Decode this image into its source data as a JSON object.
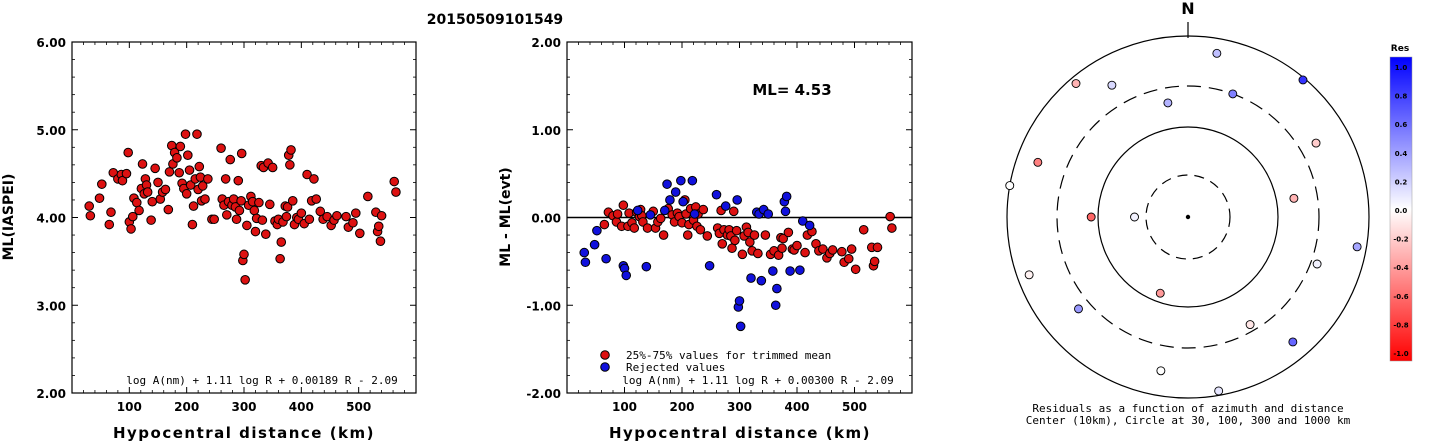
{
  "page_title": "20150509101549",
  "chart_data": [
    {
      "type": "scatter",
      "ylabel": "ML(IASPEI)",
      "xlabel": "Hypocentral distance (km)",
      "xlim": [
        0,
        600
      ],
      "ylim": [
        2.0,
        6.0
      ],
      "x_ticks": [
        "100",
        "200",
        "300",
        "400",
        "500"
      ],
      "y_ticks": [
        "2.00",
        "3.00",
        "4.00",
        "5.00",
        "6.00"
      ],
      "formula": "log A(nm) + 1.11 log R + 0.00189 R - 2.09",
      "color": "#dd1111",
      "points": [
        [
          30,
          4.13
        ],
        [
          32,
          4.02
        ],
        [
          48,
          4.22
        ],
        [
          52,
          4.38
        ],
        [
          65,
          3.92
        ],
        [
          68,
          4.06
        ],
        [
          72,
          4.51
        ],
        [
          80,
          4.44
        ],
        [
          86,
          4.49
        ],
        [
          88,
          4.42
        ],
        [
          95,
          4.5
        ],
        [
          98,
          4.74
        ],
        [
          100,
          3.95
        ],
        [
          103,
          3.87
        ],
        [
          106,
          4.01
        ],
        [
          108,
          4.22
        ],
        [
          113,
          4.17
        ],
        [
          117,
          4.08
        ],
        [
          121,
          4.33
        ],
        [
          123,
          4.61
        ],
        [
          126,
          4.27
        ],
        [
          128,
          4.44
        ],
        [
          130,
          4.37
        ],
        [
          132,
          4.29
        ],
        [
          138,
          3.97
        ],
        [
          140,
          4.18
        ],
        [
          145,
          4.56
        ],
        [
          150,
          4.4
        ],
        [
          154,
          4.21
        ],
        [
          158,
          4.29
        ],
        [
          163,
          4.32
        ],
        [
          168,
          4.09
        ],
        [
          170,
          4.52
        ],
        [
          174,
          4.82
        ],
        [
          176,
          4.61
        ],
        [
          179,
          4.74
        ],
        [
          183,
          4.68
        ],
        [
          187,
          4.51
        ],
        [
          189,
          4.81
        ],
        [
          192,
          4.39
        ],
        [
          195,
          4.33
        ],
        [
          198,
          4.95
        ],
        [
          200,
          4.27
        ],
        [
          202,
          4.71
        ],
        [
          205,
          4.54
        ],
        [
          207,
          4.37
        ],
        [
          210,
          3.92
        ],
        [
          212,
          4.13
        ],
        [
          215,
          4.44
        ],
        [
          218,
          4.95
        ],
        [
          220,
          4.32
        ],
        [
          222,
          4.58
        ],
        [
          224,
          4.46
        ],
        [
          226,
          4.19
        ],
        [
          228,
          4.36
        ],
        [
          232,
          4.21
        ],
        [
          237,
          4.44
        ],
        [
          244,
          3.98
        ],
        [
          248,
          3.98
        ],
        [
          260,
          4.79
        ],
        [
          262,
          4.21
        ],
        [
          265,
          4.14
        ],
        [
          268,
          4.44
        ],
        [
          270,
          4.03
        ],
        [
          273,
          4.18
        ],
        [
          276,
          4.66
        ],
        [
          279,
          4.14
        ],
        [
          282,
          4.21
        ],
        [
          285,
          4.12
        ],
        [
          287,
          3.98
        ],
        [
          290,
          4.42
        ],
        [
          292,
          4.08
        ],
        [
          295,
          4.19
        ],
        [
          296,
          4.73
        ],
        [
          298,
          3.51
        ],
        [
          300,
          3.58
        ],
        [
          302,
          3.29
        ],
        [
          305,
          3.91
        ],
        [
          308,
          4.14
        ],
        [
          312,
          4.24
        ],
        [
          315,
          4.18
        ],
        [
          318,
          4.08
        ],
        [
          320,
          3.84
        ],
        [
          322,
          3.99
        ],
        [
          326,
          4.17
        ],
        [
          330,
          4.59
        ],
        [
          332,
          3.97
        ],
        [
          334,
          4.57
        ],
        [
          338,
          3.81
        ],
        [
          342,
          4.62
        ],
        [
          345,
          4.15
        ],
        [
          350,
          4.57
        ],
        [
          354,
          3.96
        ],
        [
          358,
          3.92
        ],
        [
          360,
          3.98
        ],
        [
          363,
          3.53
        ],
        [
          365,
          3.72
        ],
        [
          368,
          3.95
        ],
        [
          372,
          4.13
        ],
        [
          374,
          4.01
        ],
        [
          376,
          4.12
        ],
        [
          378,
          4.71
        ],
        [
          380,
          4.6
        ],
        [
          382,
          4.77
        ],
        [
          385,
          4.19
        ],
        [
          388,
          3.92
        ],
        [
          392,
          4.0
        ],
        [
          395,
          3.98
        ],
        [
          400,
          4.05
        ],
        [
          405,
          3.93
        ],
        [
          410,
          4.49
        ],
        [
          414,
          3.98
        ],
        [
          418,
          4.19
        ],
        [
          422,
          4.44
        ],
        [
          426,
          4.21
        ],
        [
          433,
          4.07
        ],
        [
          438,
          3.98
        ],
        [
          445,
          4.01
        ],
        [
          452,
          3.91
        ],
        [
          457,
          3.97
        ],
        [
          462,
          4.02
        ],
        [
          478,
          4.01
        ],
        [
          482,
          3.89
        ],
        [
          490,
          3.94
        ],
        [
          495,
          4.05
        ],
        [
          502,
          3.82
        ],
        [
          516,
          4.24
        ],
        [
          530,
          4.06
        ],
        [
          533,
          3.84
        ],
        [
          535,
          3.9
        ],
        [
          538,
          3.73
        ],
        [
          540,
          4.02
        ],
        [
          562,
          4.41
        ],
        [
          565,
          4.29
        ]
      ]
    },
    {
      "type": "scatter",
      "ylabel": "ML - ML(evt)",
      "xlabel": "Hypocentral distance (km)",
      "xlim": [
        0,
        600
      ],
      "ylim": [
        -2.0,
        2.0
      ],
      "x_ticks": [
        "100",
        "200",
        "300",
        "400",
        "500"
      ],
      "y_ticks": [
        "-2.00",
        "-1.00",
        "0.00",
        "1.00",
        "2.00"
      ],
      "annotation": "ML= 4.53",
      "formula": "log A(nm) + 1.11 log R + 0.00300 R - 2.09",
      "series": [
        {
          "name": "25%-75% values for trimmed mean",
          "color": "#dd1111",
          "points": [
            [
              65,
              -0.08
            ],
            [
              72,
              0.06
            ],
            [
              80,
              0.02
            ],
            [
              86,
              -0.05
            ],
            [
              88,
              0.04
            ],
            [
              95,
              -0.1
            ],
            [
              98,
              0.14
            ],
            [
              106,
              -0.1
            ],
            [
              108,
              0.05
            ],
            [
              113,
              -0.06
            ],
            [
              117,
              -0.12
            ],
            [
              121,
              0.06
            ],
            [
              126,
              0.01
            ],
            [
              128,
              0.09
            ],
            [
              130,
              0.02
            ],
            [
              132,
              -0.05
            ],
            [
              140,
              -0.12
            ],
            [
              150,
              0.07
            ],
            [
              154,
              -0.12
            ],
            [
              158,
              -0.05
            ],
            [
              163,
              -0.01
            ],
            [
              168,
              -0.2
            ],
            [
              176,
              0.1
            ],
            [
              183,
              0.03
            ],
            [
              187,
              -0.05
            ],
            [
              192,
              0.05
            ],
            [
              195,
              0.01
            ],
            [
              200,
              -0.06
            ],
            [
              205,
              0.2
            ],
            [
              207,
              0.04
            ],
            [
              210,
              -0.2
            ],
            [
              212,
              -0.08
            ],
            [
              215,
              0.1
            ],
            [
              220,
              -0.03
            ],
            [
              224,
              0.12
            ],
            [
              226,
              -0.1
            ],
            [
              228,
              0.04
            ],
            [
              232,
              -0.14
            ],
            [
              237,
              0.09
            ],
            [
              244,
              -0.21
            ],
            [
              262,
              -0.12
            ],
            [
              265,
              -0.18
            ],
            [
              268,
              0.08
            ],
            [
              270,
              -0.3
            ],
            [
              273,
              -0.14
            ],
            [
              279,
              -0.2
            ],
            [
              282,
              -0.14
            ],
            [
              285,
              -0.21
            ],
            [
              287,
              -0.35
            ],
            [
              290,
              0.07
            ],
            [
              292,
              -0.26
            ],
            [
              295,
              -0.15
            ],
            [
              305,
              -0.42
            ],
            [
              308,
              -0.21
            ],
            [
              312,
              -0.11
            ],
            [
              315,
              -0.17
            ],
            [
              318,
              -0.28
            ],
            [
              322,
              -0.38
            ],
            [
              326,
              -0.2
            ],
            [
              332,
              -0.41
            ],
            [
              345,
              -0.2
            ],
            [
              354,
              -0.42
            ],
            [
              360,
              -0.38
            ],
            [
              368,
              -0.43
            ],
            [
              372,
              -0.23
            ],
            [
              374,
              -0.35
            ],
            [
              376,
              -0.24
            ],
            [
              385,
              -0.17
            ],
            [
              392,
              -0.36
            ],
            [
              395,
              -0.37
            ],
            [
              400,
              -0.32
            ],
            [
              414,
              -0.4
            ],
            [
              418,
              -0.2
            ],
            [
              426,
              -0.16
            ],
            [
              433,
              -0.3
            ],
            [
              438,
              -0.38
            ],
            [
              445,
              -0.36
            ],
            [
              452,
              -0.46
            ],
            [
              457,
              -0.41
            ],
            [
              462,
              -0.37
            ],
            [
              478,
              -0.39
            ],
            [
              482,
              -0.51
            ],
            [
              490,
              -0.47
            ],
            [
              495,
              -0.36
            ],
            [
              502,
              -0.59
            ],
            [
              516,
              -0.14
            ],
            [
              530,
              -0.34
            ],
            [
              533,
              -0.55
            ],
            [
              535,
              -0.5
            ],
            [
              540,
              -0.34
            ],
            [
              562,
              0.01
            ],
            [
              565,
              -0.12
            ]
          ]
        },
        {
          "name": "Rejected values",
          "color": "#1111dd",
          "points": [
            [
              30,
              -0.4
            ],
            [
              32,
              -0.51
            ],
            [
              48,
              -0.31
            ],
            [
              52,
              -0.15
            ],
            [
              68,
              -0.47
            ],
            [
              98,
              -0.55
            ],
            [
              100,
              -0.58
            ],
            [
              103,
              -0.66
            ],
            [
              123,
              0.08
            ],
            [
              138,
              -0.56
            ],
            [
              145,
              0.03
            ],
            [
              170,
              0.08
            ],
            [
              174,
              0.38
            ],
            [
              179,
              0.2
            ],
            [
              189,
              0.29
            ],
            [
              198,
              0.42
            ],
            [
              202,
              0.18
            ],
            [
              218,
              0.42
            ],
            [
              222,
              0.04
            ],
            [
              248,
              -0.55
            ],
            [
              260,
              0.26
            ],
            [
              276,
              0.13
            ],
            [
              296,
              0.2
            ],
            [
              298,
              -1.02
            ],
            [
              300,
              -0.95
            ],
            [
              302,
              -1.24
            ],
            [
              320,
              -0.69
            ],
            [
              330,
              0.06
            ],
            [
              334,
              0.04
            ],
            [
              338,
              -0.72
            ],
            [
              342,
              0.09
            ],
            [
              350,
              0.04
            ],
            [
              358,
              -0.61
            ],
            [
              363,
              -1.0
            ],
            [
              365,
              -0.81
            ],
            [
              378,
              0.18
            ],
            [
              380,
              0.07
            ],
            [
              382,
              0.24
            ],
            [
              388,
              -0.61
            ],
            [
              405,
              -0.6
            ],
            [
              410,
              -0.04
            ],
            [
              422,
              -0.09
            ]
          ]
        }
      ]
    },
    {
      "type": "polar",
      "north_label": "N",
      "caption_line1": "Residuals as a function of azimuth and distance",
      "caption_line2": "Center (10km), Circle at 30, 100, 300 and 1000 km",
      "colorbar_title": "Res",
      "colorbar_ticks": [
        "1.0",
        "0.8",
        "0.6",
        "0.4",
        "0.2",
        "0.0",
        "-0.2",
        "-0.4",
        "-0.6",
        "-0.8",
        "-1.0"
      ],
      "residual_range": [
        -1.0,
        1.0
      ],
      "points": [
        [
          40,
          270,
          0.05
        ],
        [
          80,
          200,
          -0.4
        ],
        [
          120,
          270,
          -0.6
        ],
        [
          160,
          80,
          -0.3
        ],
        [
          200,
          350,
          0.3
        ],
        [
          250,
          150,
          -0.1
        ],
        [
          300,
          20,
          0.5
        ],
        [
          350,
          110,
          0.05
        ],
        [
          400,
          230,
          0.4
        ],
        [
          450,
          60,
          -0.2
        ],
        [
          500,
          330,
          0.15
        ],
        [
          550,
          190,
          0.0
        ],
        [
          600,
          290,
          -0.5
        ],
        [
          650,
          140,
          0.6
        ],
        [
          700,
          10,
          0.25
        ],
        [
          750,
          250,
          -0.05
        ],
        [
          800,
          100,
          0.35
        ],
        [
          850,
          320,
          -0.3
        ],
        [
          900,
          170,
          0.1
        ],
        [
          950,
          40,
          0.8
        ],
        [
          1000,
          280,
          0.0
        ]
      ]
    }
  ]
}
